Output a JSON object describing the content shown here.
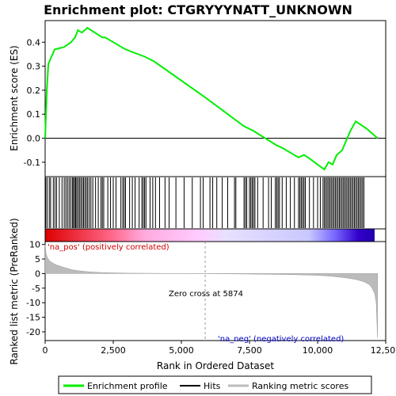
{
  "chart_data": {
    "type": "line",
    "title": "Enrichment plot: CTGRYYYNATT_UNKNOWN",
    "top_panel": {
      "ylabel": "Enrichment score (ES)",
      "ylim": [
        -0.16,
        0.49
      ],
      "yticks": [
        -0.1,
        0.0,
        0.1,
        0.2,
        0.3,
        0.4
      ],
      "ytick_labels": [
        "-0.1",
        "0.0",
        "0.1",
        "0.2",
        "0.3",
        "0.4"
      ],
      "series": [
        {
          "name": "Enrichment profile",
          "color": "#00ee00",
          "x": [
            0,
            60,
            120,
            350,
            700,
            950,
            1100,
            1200,
            1350,
            1550,
            2100,
            2200,
            2800,
            2950,
            3650,
            4000,
            5874,
            7300,
            7650,
            8500,
            8700,
            9300,
            9500,
            9650,
            10000,
            10250,
            10400,
            10550,
            10700,
            10900,
            11050,
            11200,
            11400,
            11800,
            12200
          ],
          "y": [
            0.0,
            0.2,
            0.31,
            0.37,
            0.38,
            0.4,
            0.42,
            0.45,
            0.44,
            0.46,
            0.42,
            0.42,
            0.38,
            0.37,
            0.34,
            0.32,
            0.17,
            0.05,
            0.03,
            -0.03,
            -0.04,
            -0.08,
            -0.07,
            -0.08,
            -0.11,
            -0.13,
            -0.1,
            -0.11,
            -0.07,
            -0.05,
            -0.01,
            0.03,
            0.07,
            0.04,
            0.0
          ]
        }
      ]
    },
    "hits": [
      20,
      70,
      150,
      200,
      300,
      360,
      420,
      520,
      620,
      700,
      760,
      820,
      880,
      940,
      1000,
      1040,
      1080,
      1120,
      1160,
      1210,
      1260,
      1310,
      1360,
      1410,
      1460,
      1510,
      1560,
      1620,
      1680,
      1750,
      1850,
      1950,
      2050,
      2100,
      2150,
      2300,
      2400,
      2500,
      2600,
      2780,
      2850,
      2900,
      2950,
      3100,
      3200,
      3300,
      3450,
      3550,
      3600,
      3650,
      3700,
      3850,
      3950,
      4050,
      4200,
      4400,
      4550,
      4800,
      5100,
      5400,
      5700,
      5800,
      6050,
      6150,
      6300,
      6500,
      6700,
      6950,
      7000,
      7300,
      7350,
      7400,
      7500,
      7550,
      7600,
      7650,
      7700,
      7800,
      8000,
      8200,
      8300,
      8450,
      8500,
      8550,
      8600,
      8700,
      8850,
      9000,
      9150,
      9300,
      9350,
      9400,
      9450,
      9500,
      9550,
      9700,
      9850,
      10000,
      10100,
      10200,
      10250,
      10300,
      10350,
      10400,
      10450,
      10500,
      10550,
      10600,
      10650,
      10700,
      10750,
      10800,
      10850,
      10900,
      10950,
      11000,
      11050,
      11100,
      11150,
      11200,
      11250,
      11300,
      11350,
      11400,
      11450,
      11500,
      11550,
      11600,
      11650,
      11700
    ],
    "bottom_panel": {
      "ylabel": "Ranked list metric (PreRanked)",
      "xlabel": "Rank in Ordered Dataset",
      "ylim": [
        -23,
        11
      ],
      "yticks": [
        10,
        5,
        0,
        -5,
        -10,
        -15,
        -20
      ],
      "ytick_labels": [
        "10",
        "5",
        "0",
        "-5",
        "-10",
        "-15",
        "-20"
      ],
      "metric": {
        "x": [
          0,
          30,
          80,
          150,
          250,
          400,
          600,
          800,
          1000,
          1300,
          1600,
          2000,
          2500,
          3000,
          4000,
          5000,
          5874,
          7000,
          8000,
          9000,
          10000,
          10500,
          11000,
          11400,
          11700,
          11900,
          12000,
          12100,
          12150,
          12200
        ],
        "y": [
          10,
          7,
          5.5,
          4.5,
          3.8,
          3.0,
          2.4,
          1.8,
          1.3,
          0.9,
          0.6,
          0.4,
          0.25,
          0.15,
          0.08,
          0.03,
          0.0,
          -0.1,
          -0.2,
          -0.35,
          -0.6,
          -0.9,
          -1.4,
          -2.0,
          -2.8,
          -3.8,
          -5.0,
          -7.0,
          -10.0,
          -22.0
        ]
      },
      "annotations": [
        {
          "text": "'na_pos' (positively correlated)",
          "color": "#cc0000"
        },
        {
          "text": "Zero cross at 5874",
          "color": "#000000"
        },
        {
          "text": "'na_neg' (negatively correlated)",
          "color": "#0000cc"
        }
      ],
      "zero_cross": 5874
    },
    "xlim": [
      0,
      12500
    ],
    "xticks": [
      0,
      2500,
      5000,
      7500,
      10000,
      12500
    ],
    "xtick_labels": [
      "0",
      "2,500",
      "5,000",
      "7,500",
      "10,000",
      "12,500"
    ],
    "gradient_colors": [
      "#dd0000",
      "#ff99cc",
      "#ffccff",
      "#ddddff",
      "#9999ff",
      "#3300cc"
    ],
    "legend": {
      "items": [
        {
          "label": "Enrichment profile",
          "color": "#00ee00"
        },
        {
          "label": "Hits",
          "color": "#000000"
        },
        {
          "label": "Ranking metric scores",
          "color": "#bbbbbb"
        }
      ]
    }
  }
}
